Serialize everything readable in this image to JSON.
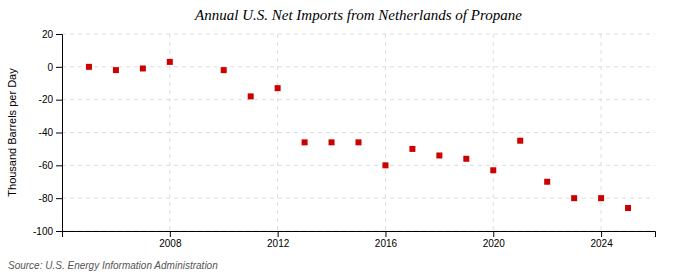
{
  "chart_data": {
    "type": "scatter",
    "title": "Annual U.S. Net Imports from Netherlands of Propane",
    "ylabel": "Thousand Barrels per Day",
    "annotations": [
      "Source: U.S. Energy Information Administration"
    ],
    "x": [
      2005,
      2006,
      2007,
      2008,
      2010,
      2011,
      2012,
      2013,
      2014,
      2015,
      2016,
      2017,
      2018,
      2019,
      2020,
      2021,
      2022,
      2023,
      2024,
      2025
    ],
    "values": [
      0,
      -2,
      -1,
      3,
      -2,
      -18,
      -13,
      -46,
      -46,
      -46,
      -60,
      -50,
      -54,
      -56,
      -63,
      -45,
      -70,
      -80,
      -80,
      -86
    ],
    "color": "#cc0000",
    "marker": "square",
    "xlim": [
      2004,
      2026
    ],
    "ylim": [
      -100,
      20
    ],
    "xticks": [
      2008,
      2012,
      2016,
      2020,
      2024
    ],
    "yticks": [
      -100,
      -80,
      -60,
      -40,
      -20,
      0,
      20
    ],
    "grid": true
  }
}
